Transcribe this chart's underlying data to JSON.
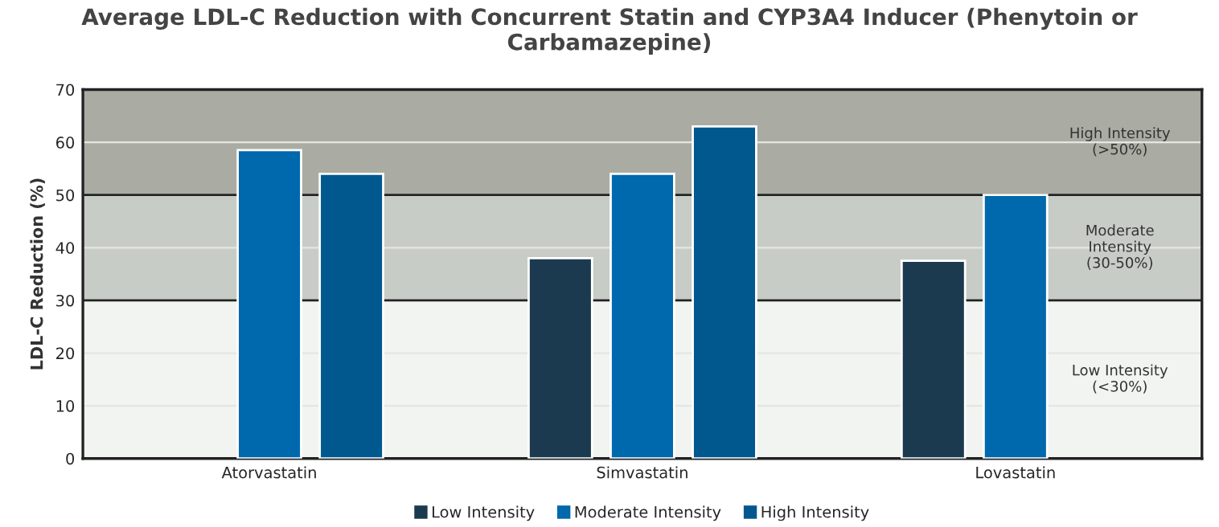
{
  "chart_data": {
    "type": "bar",
    "title": "Average LDL-C Reduction with Concurrent Statin and CYP3A4 Inducer (Phenytoin or Carbamazepine)",
    "ylabel": "LDL-C Reduction (%)",
    "categories": [
      "Atorvastatin",
      "Simvastatin",
      "Lovastatin"
    ],
    "series": [
      {
        "name": "Low Intensity",
        "color": "#1b3a4f",
        "values": [
          null,
          38,
          37.5
        ]
      },
      {
        "name": "Moderate Intensity",
        "color": "#0068ad",
        "values": [
          58.5,
          54,
          50
        ]
      },
      {
        "name": "High Intensity",
        "color": "#00588f",
        "values": [
          54,
          63,
          null
        ]
      }
    ],
    "ylim": [
      0,
      70
    ],
    "yticks": [
      0,
      10,
      20,
      30,
      40,
      50,
      60,
      70
    ],
    "bands": [
      {
        "axis": "y",
        "from": 0,
        "to": 30,
        "label": "Low Intensity\n(<30%)",
        "color": "#f2f4f2"
      },
      {
        "axis": "y",
        "from": 30,
        "to": 50,
        "label": "Moderate\nIntensity\n(30-50%)",
        "color": "#c8ccc6"
      },
      {
        "axis": "y",
        "from": 50,
        "to": 70,
        "label": "High Intensity\n(>50%)",
        "color": "#aaaca4"
      }
    ],
    "grid": "y",
    "legend": "bottom"
  }
}
